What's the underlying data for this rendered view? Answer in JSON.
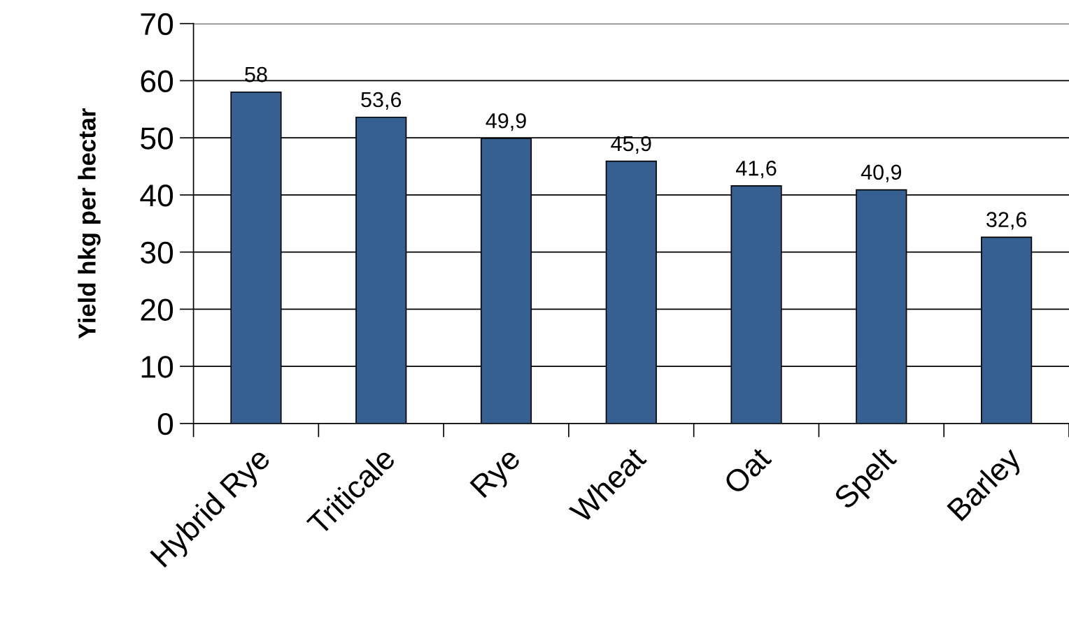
{
  "chart_data": {
    "type": "bar",
    "ylabel": "Yield hkg per hectar",
    "categories": [
      "Hybrid Rye",
      "Triticale",
      "Rye",
      "Wheat",
      "Oat",
      "Spelt",
      "Barley"
    ],
    "values": [
      58,
      53.6,
      49.9,
      45.9,
      41.6,
      40.9,
      32.6
    ],
    "value_labels": [
      "58",
      "53,6",
      "49,9",
      "45,9",
      "41,6",
      "40,9",
      "32,6"
    ],
    "color": "#366092",
    "ylim": [
      0,
      70
    ],
    "yticks": [
      0,
      10,
      20,
      30,
      40,
      50,
      60,
      70
    ],
    "grid": "y",
    "legend": false
  }
}
